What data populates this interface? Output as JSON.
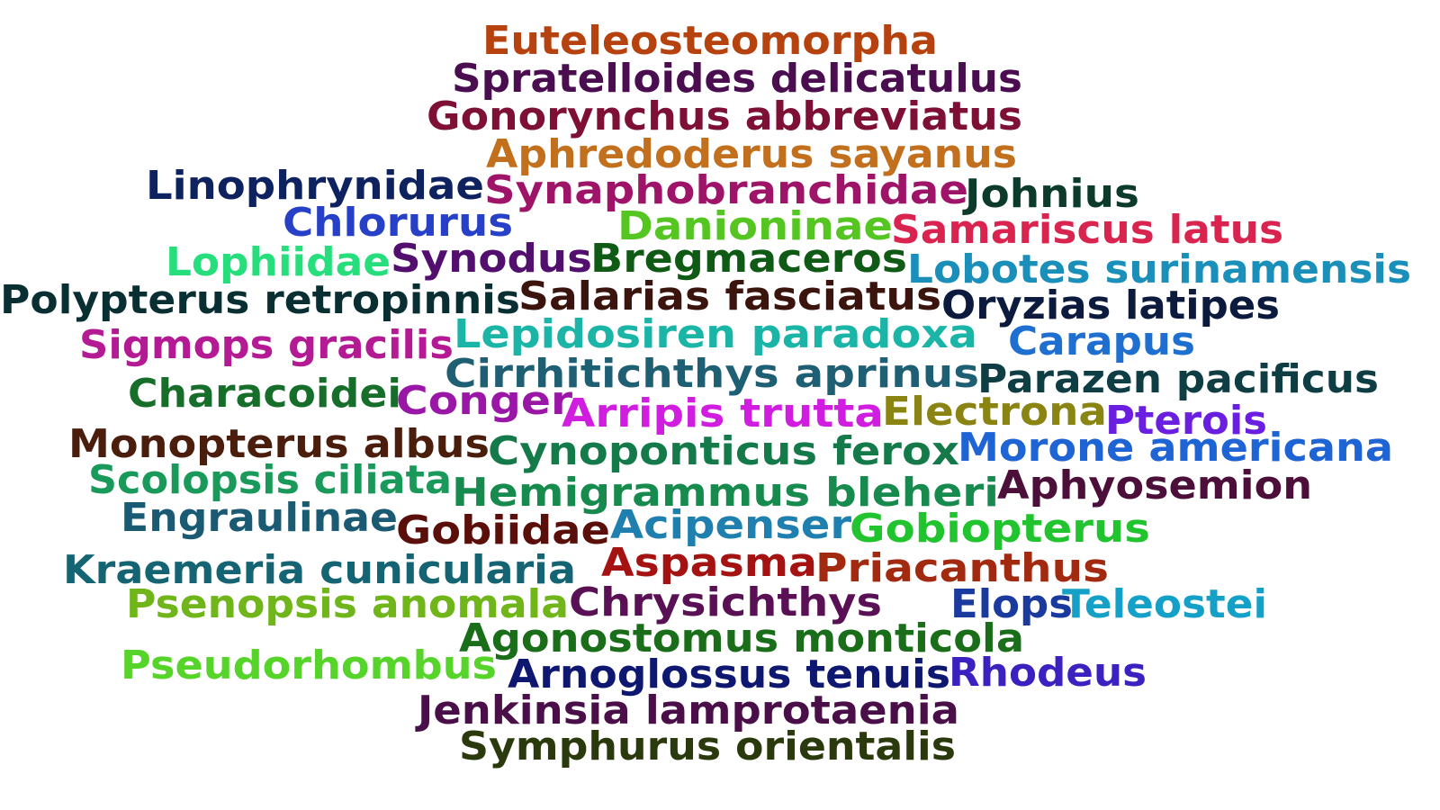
{
  "words": [
    {
      "text": "Euteleosteomorpha",
      "color": "#b5420f"
    },
    {
      "text": "Spratelloides delicatulus",
      "color": "#4a0d4f"
    },
    {
      "text": "Gonorynchus abbreviatus",
      "color": "#7e0f35"
    },
    {
      "text": "Aphredoderus sayanus",
      "color": "#c2701e"
    },
    {
      "text": "Linophrynidae",
      "color": "#0f2260"
    },
    {
      "text": "Synaphobranchidae",
      "color": "#9e1468"
    },
    {
      "text": "Johnius",
      "color": "#0c3b2c"
    },
    {
      "text": "Chlorurus",
      "color": "#2640c8"
    },
    {
      "text": "Danioninae",
      "color": "#55c521"
    },
    {
      "text": "Samariscus latus",
      "color": "#d9244f"
    },
    {
      "text": "Lophiidae",
      "color": "#26df7c"
    },
    {
      "text": "Synodus",
      "color": "#520f6e"
    },
    {
      "text": "Bregmaceros",
      "color": "#0f5a14"
    },
    {
      "text": "Lobotes surinamensis",
      "color": "#1a8fba"
    },
    {
      "text": "Polypterus retropinnis",
      "color": "#0a2f33"
    },
    {
      "text": "Salarias fasciatus",
      "color": "#3a140d"
    },
    {
      "text": "Oryzias latipes",
      "color": "#0b1a3d"
    },
    {
      "text": "Sigmops gracilis",
      "color": "#b31a93"
    },
    {
      "text": "Lepidosiren paradoxa",
      "color": "#1bb5a8"
    },
    {
      "text": "Carapus",
      "color": "#1f6fd0"
    },
    {
      "text": "Cirrhitichthys aprinus",
      "color": "#1f5f73"
    },
    {
      "text": "Parazen pacificus",
      "color": "#0f3d44"
    },
    {
      "text": "Characoidei",
      "color": "#166e2a"
    },
    {
      "text": "Conger",
      "color": "#9a16a6"
    },
    {
      "text": "Arripis trutta",
      "color": "#d01de0"
    },
    {
      "text": "Electrona",
      "color": "#8a8512"
    },
    {
      "text": "Pterois",
      "color": "#6a1fe0"
    },
    {
      "text": "Monopterus albus",
      "color": "#4a1d0c"
    },
    {
      "text": "Cynoponticus ferox",
      "color": "#147a4a"
    },
    {
      "text": "Morone americana",
      "color": "#1e64d4"
    },
    {
      "text": "Scolopsis ciliata",
      "color": "#1a9a5a"
    },
    {
      "text": "Hemigrammus bleheri",
      "color": "#178a4e"
    },
    {
      "text": "Aphyosemion",
      "color": "#4b0f3a"
    },
    {
      "text": "Engraulinae",
      "color": "#1a5a73"
    },
    {
      "text": "Gobiidae",
      "color": "#5a0f0a"
    },
    {
      "text": "Acipenser",
      "color": "#1f7faf"
    },
    {
      "text": "Gobiopterus",
      "color": "#21c42e"
    },
    {
      "text": "Kraemeria cunicularia",
      "color": "#156473"
    },
    {
      "text": "Aspasma",
      "color": "#a51212"
    },
    {
      "text": "Priacanthus",
      "color": "#a12a10"
    },
    {
      "text": "Psenopsis anomala",
      "color": "#70b51a"
    },
    {
      "text": "Chrysichthys",
      "color": "#5a1055"
    },
    {
      "text": "Elops",
      "color": "#1a3a9e"
    },
    {
      "text": "Teleostei",
      "color": "#15a0c8"
    },
    {
      "text": "Agonostomus monticola",
      "color": "#1a6e1a"
    },
    {
      "text": "Pseudorhombus",
      "color": "#56d42a"
    },
    {
      "text": "Arnoglossus tenuis",
      "color": "#0f1870"
    },
    {
      "text": "Rhodeus",
      "color": "#3a21c0"
    },
    {
      "text": "Jenkinsia lamprotaenia",
      "color": "#4a0f48"
    },
    {
      "text": "Symphurus orientalis",
      "color": "#2a3a0c"
    }
  ]
}
